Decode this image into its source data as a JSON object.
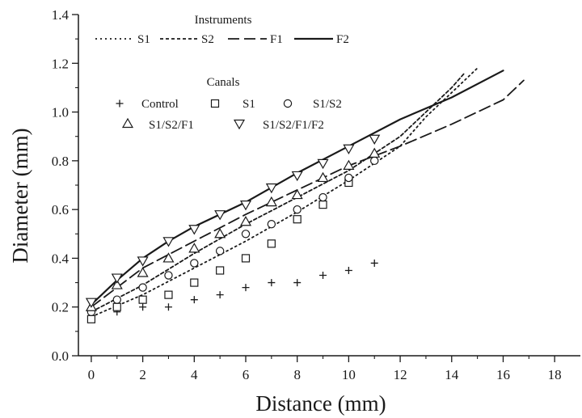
{
  "chart_data": {
    "type": "line",
    "xlabel": "Distance (mm)",
    "ylabel": "Diameter (mm)",
    "xlim": [
      -0.5,
      19
    ],
    "ylim": [
      0,
      1.4
    ],
    "x_ticks": [
      0,
      2,
      4,
      6,
      8,
      10,
      12,
      14,
      16,
      18
    ],
    "y_ticks": [
      0.0,
      0.2,
      0.4,
      0.6,
      0.8,
      1.0,
      1.2,
      1.4
    ],
    "grid": false,
    "instruments_legend": {
      "title": "Instruments",
      "placement": "top-left"
    },
    "canals_legend": {
      "title": "Canals",
      "placement": "top-left"
    },
    "lines": [
      {
        "name": "S1",
        "dash": "dotted",
        "x": [
          0,
          2,
          4,
          6,
          8,
          10,
          12,
          13,
          14,
          15
        ],
        "y": [
          0.16,
          0.25,
          0.36,
          0.47,
          0.59,
          0.72,
          0.86,
          0.98,
          1.08,
          1.18
        ]
      },
      {
        "name": "S2",
        "dash": "short-dash",
        "x": [
          0,
          2,
          4,
          6,
          8,
          10,
          12,
          13,
          14,
          14.5
        ],
        "y": [
          0.18,
          0.29,
          0.42,
          0.54,
          0.65,
          0.76,
          0.9,
          1.0,
          1.1,
          1.16
        ]
      },
      {
        "name": "F1",
        "dash": "long-dash",
        "x": [
          0,
          2,
          4,
          6,
          8,
          10,
          12,
          14,
          16,
          16.8
        ],
        "y": [
          0.2,
          0.36,
          0.47,
          0.58,
          0.68,
          0.78,
          0.86,
          0.95,
          1.05,
          1.13
        ]
      },
      {
        "name": "F2",
        "dash": "solid",
        "x": [
          0,
          1,
          2,
          3,
          4,
          6,
          8,
          10,
          12,
          14,
          16
        ],
        "y": [
          0.21,
          0.31,
          0.4,
          0.47,
          0.53,
          0.63,
          0.75,
          0.86,
          0.97,
          1.06,
          1.17
        ]
      }
    ],
    "point_series": [
      {
        "name": "Control",
        "marker": "plus",
        "x": [
          0,
          1,
          2,
          3,
          4,
          5,
          6,
          7,
          8,
          9,
          10,
          11
        ],
        "y": [
          0.19,
          0.18,
          0.2,
          0.2,
          0.23,
          0.25,
          0.28,
          0.3,
          0.3,
          0.33,
          0.35,
          0.38
        ]
      },
      {
        "name": "S1",
        "marker": "square",
        "x": [
          0,
          1,
          2,
          3,
          4,
          5,
          6,
          7,
          8,
          9,
          10
        ],
        "y": [
          0.15,
          0.2,
          0.23,
          0.25,
          0.3,
          0.35,
          0.4,
          0.46,
          0.56,
          0.62,
          0.71
        ]
      },
      {
        "name": "S1/S2",
        "marker": "circle",
        "x": [
          0,
          1,
          2,
          3,
          4,
          5,
          6,
          7,
          8,
          9,
          10,
          11
        ],
        "y": [
          0.18,
          0.23,
          0.28,
          0.33,
          0.38,
          0.43,
          0.5,
          0.54,
          0.6,
          0.65,
          0.73,
          0.8
        ]
      },
      {
        "name": "S1/S2/F1",
        "marker": "triangle-up",
        "x": [
          0,
          1,
          2,
          3,
          4,
          5,
          6,
          7,
          8,
          9,
          10,
          11
        ],
        "y": [
          0.2,
          0.29,
          0.34,
          0.4,
          0.44,
          0.5,
          0.55,
          0.63,
          0.66,
          0.73,
          0.78,
          0.83
        ]
      },
      {
        "name": "S1/S2/F1/F2",
        "marker": "triangle-down",
        "x": [
          0,
          1,
          2,
          3,
          4,
          5,
          6,
          7,
          8,
          9,
          10,
          11
        ],
        "y": [
          0.22,
          0.32,
          0.39,
          0.47,
          0.52,
          0.58,
          0.62,
          0.69,
          0.74,
          0.79,
          0.85,
          0.89
        ]
      }
    ]
  }
}
